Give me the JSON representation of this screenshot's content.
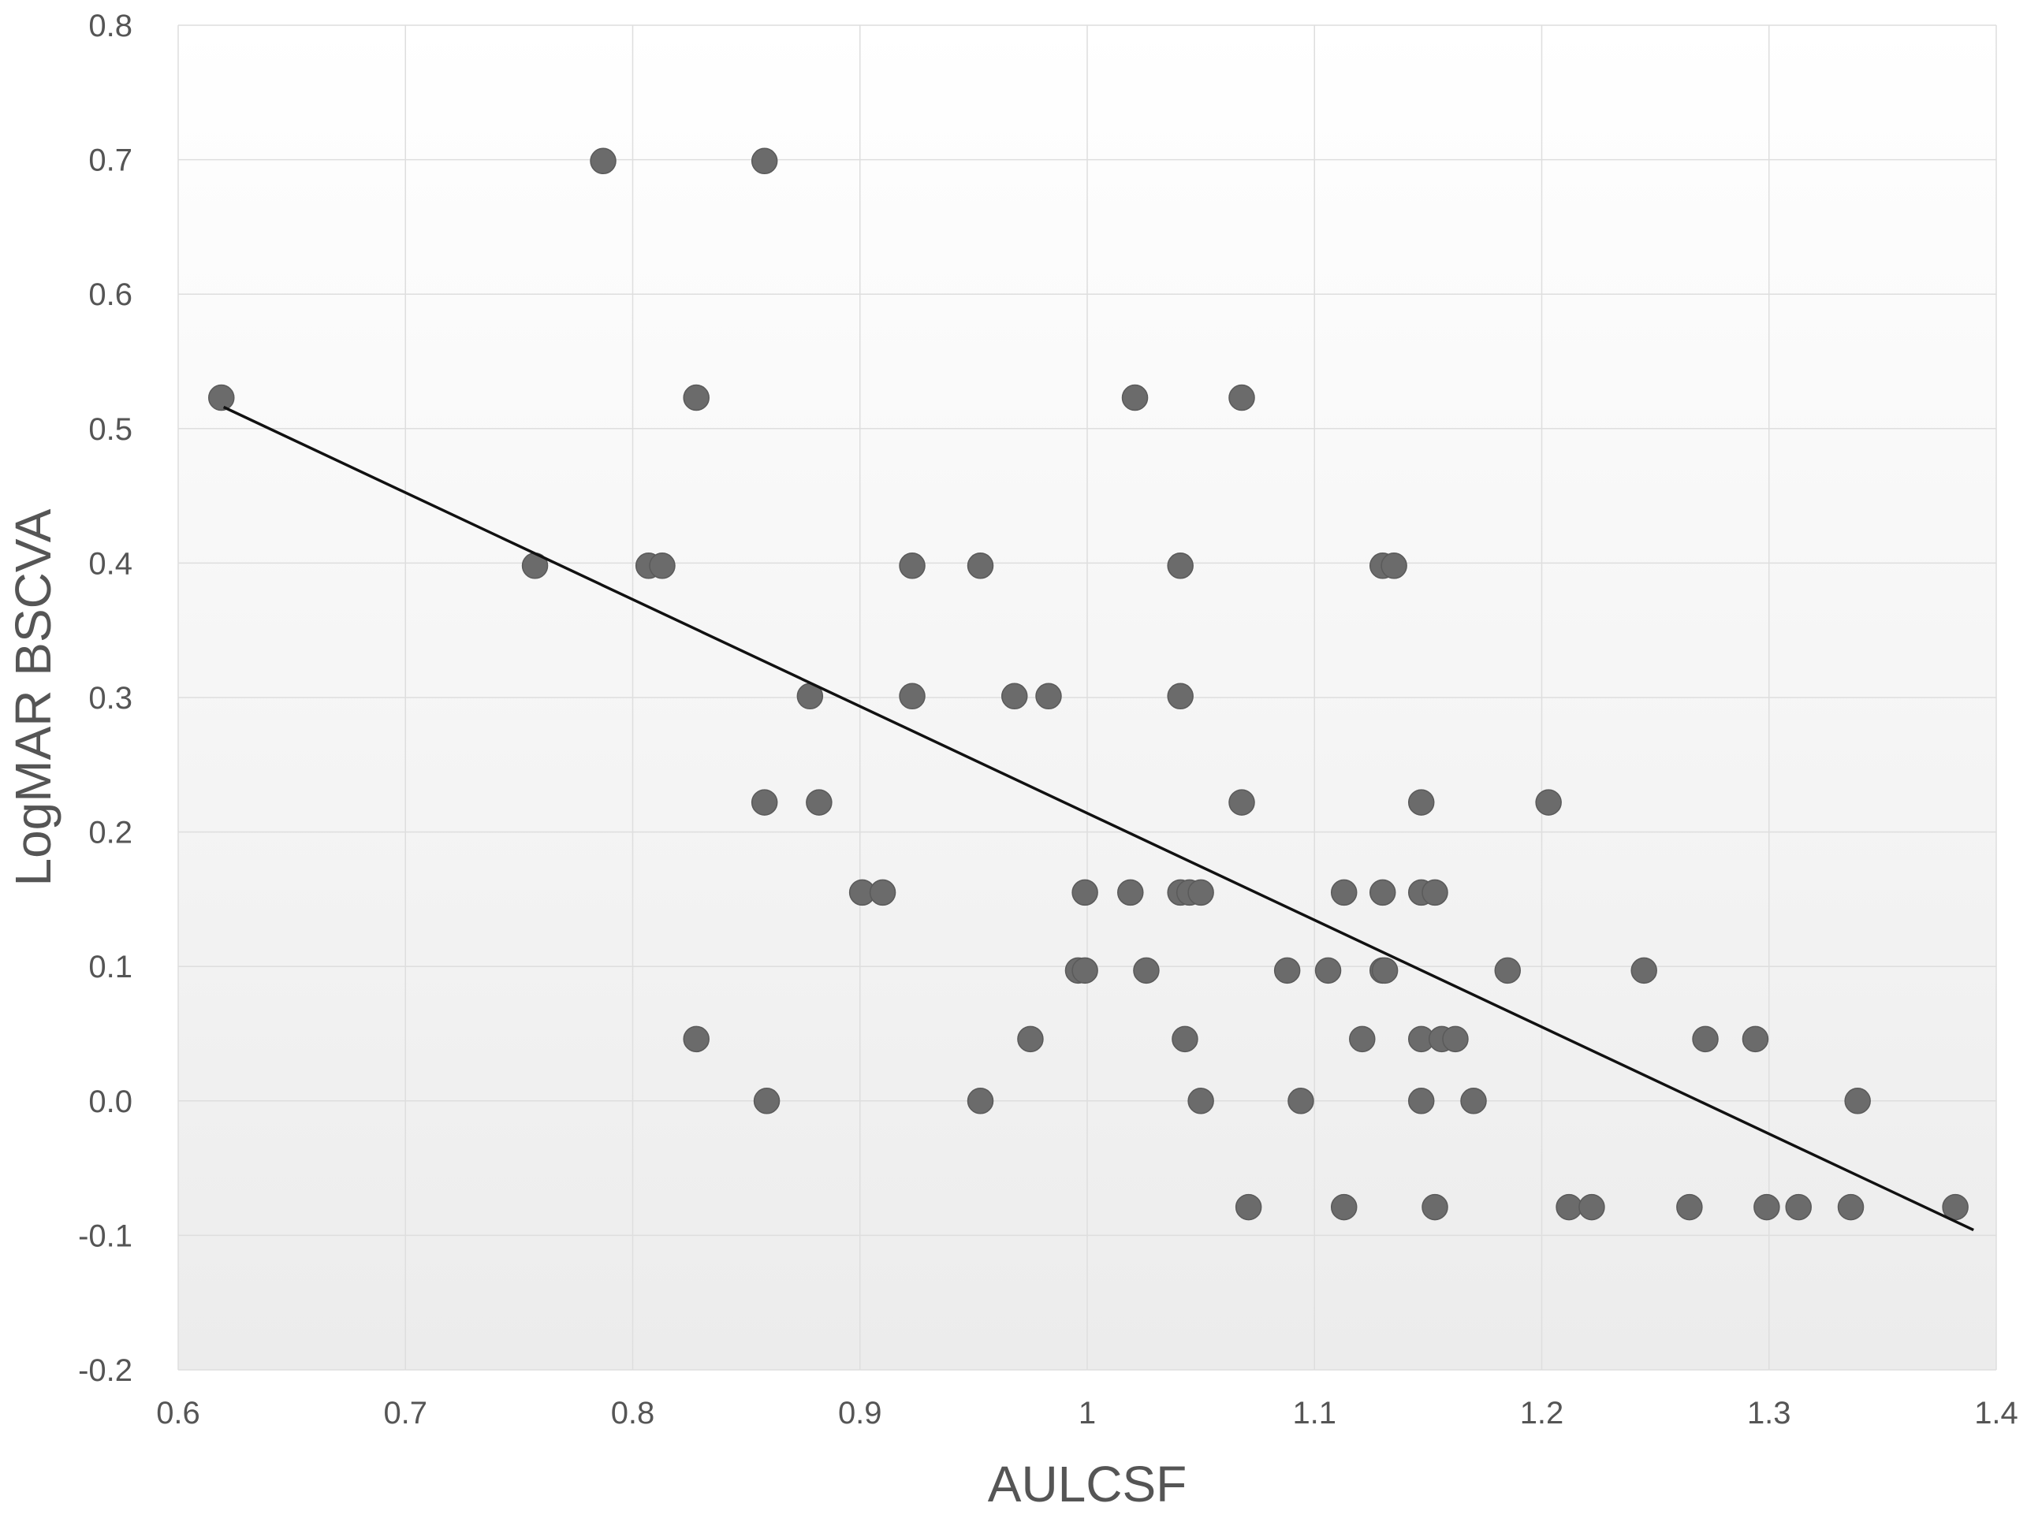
{
  "chart_data": {
    "type": "scatter",
    "xlabel": "AULCSF",
    "ylabel": "LogMAR BSCVA",
    "xlim": [
      0.6,
      1.4
    ],
    "ylim": [
      -0.2,
      0.8
    ],
    "grid": true,
    "x_ticks": [
      "0.6",
      "0.7",
      "0.8",
      "0.9",
      "1",
      "1.1",
      "1.2",
      "1.3",
      "1.4"
    ],
    "y_ticks": [
      "0.8",
      "0.7",
      "0.6",
      "0.5",
      "0.4",
      "0.3",
      "0.2",
      "0.1",
      "0.0",
      "-0.1",
      "-0.2"
    ],
    "colors": {
      "points": "#6b6b6b",
      "trendline": "#111111",
      "gridline": "#dedede",
      "text": "#555555"
    },
    "trendline": {
      "x": [
        0.62,
        1.39
      ],
      "y": [
        0.516,
        -0.096
      ]
    },
    "points": [
      {
        "x": 0.619,
        "y": 0.523
      },
      {
        "x": 0.757,
        "y": 0.398
      },
      {
        "x": 0.787,
        "y": 0.699
      },
      {
        "x": 0.807,
        "y": 0.398
      },
      {
        "x": 0.813,
        "y": 0.398
      },
      {
        "x": 0.828,
        "y": 0.523
      },
      {
        "x": 0.828,
        "y": 0.046
      },
      {
        "x": 0.858,
        "y": 0.699
      },
      {
        "x": 0.858,
        "y": 0.222
      },
      {
        "x": 0.859,
        "y": 0.0
      },
      {
        "x": 0.878,
        "y": 0.301
      },
      {
        "x": 0.882,
        "y": 0.222
      },
      {
        "x": 0.901,
        "y": 0.155
      },
      {
        "x": 0.91,
        "y": 0.155
      },
      {
        "x": 0.923,
        "y": 0.398
      },
      {
        "x": 0.923,
        "y": 0.301
      },
      {
        "x": 0.953,
        "y": 0.398
      },
      {
        "x": 0.953,
        "y": 0.0
      },
      {
        "x": 0.968,
        "y": 0.301
      },
      {
        "x": 0.975,
        "y": 0.046
      },
      {
        "x": 0.983,
        "y": 0.301
      },
      {
        "x": 0.996,
        "y": 0.097
      },
      {
        "x": 0.999,
        "y": 0.097
      },
      {
        "x": 0.999,
        "y": 0.155
      },
      {
        "x": 1.019,
        "y": 0.155
      },
      {
        "x": 1.021,
        "y": 0.523
      },
      {
        "x": 1.026,
        "y": 0.097
      },
      {
        "x": 1.041,
        "y": 0.398
      },
      {
        "x": 1.041,
        "y": 0.301
      },
      {
        "x": 1.041,
        "y": 0.155
      },
      {
        "x": 1.045,
        "y": 0.155
      },
      {
        "x": 1.043,
        "y": 0.046
      },
      {
        "x": 1.05,
        "y": 0.155
      },
      {
        "x": 1.05,
        "y": 0.0
      },
      {
        "x": 1.068,
        "y": 0.523
      },
      {
        "x": 1.068,
        "y": 0.222
      },
      {
        "x": 1.071,
        "y": -0.079
      },
      {
        "x": 1.088,
        "y": 0.097
      },
      {
        "x": 1.094,
        "y": 0.0
      },
      {
        "x": 1.106,
        "y": 0.097
      },
      {
        "x": 1.113,
        "y": 0.155
      },
      {
        "x": 1.113,
        "y": -0.079
      },
      {
        "x": 1.121,
        "y": 0.046
      },
      {
        "x": 1.13,
        "y": 0.398
      },
      {
        "x": 1.135,
        "y": 0.398
      },
      {
        "x": 1.13,
        "y": 0.155
      },
      {
        "x": 1.13,
        "y": 0.097
      },
      {
        "x": 1.131,
        "y": 0.097
      },
      {
        "x": 1.147,
        "y": 0.222
      },
      {
        "x": 1.147,
        "y": 0.155
      },
      {
        "x": 1.153,
        "y": 0.155
      },
      {
        "x": 1.147,
        "y": 0.046
      },
      {
        "x": 1.156,
        "y": 0.046
      },
      {
        "x": 1.162,
        "y": 0.046
      },
      {
        "x": 1.147,
        "y": 0.0
      },
      {
        "x": 1.17,
        "y": 0.0
      },
      {
        "x": 1.153,
        "y": -0.079
      },
      {
        "x": 1.185,
        "y": 0.097
      },
      {
        "x": 1.203,
        "y": 0.222
      },
      {
        "x": 1.212,
        "y": -0.079
      },
      {
        "x": 1.222,
        "y": -0.079
      },
      {
        "x": 1.245,
        "y": 0.097
      },
      {
        "x": 1.265,
        "y": -0.079
      },
      {
        "x": 1.272,
        "y": 0.046
      },
      {
        "x": 1.294,
        "y": 0.046
      },
      {
        "x": 1.299,
        "y": -0.079
      },
      {
        "x": 1.313,
        "y": -0.079
      },
      {
        "x": 1.336,
        "y": -0.079
      },
      {
        "x": 1.339,
        "y": 0.0
      },
      {
        "x": 1.382,
        "y": -0.079
      }
    ]
  }
}
